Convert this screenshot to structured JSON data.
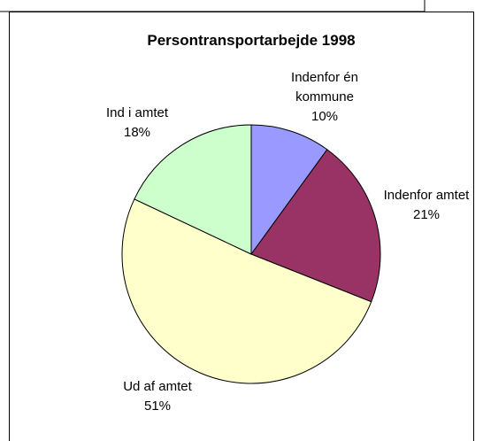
{
  "chart_data": {
    "type": "pie",
    "title": "Persontransportarbejde 1998",
    "categories": [
      "Indenfor én kommune",
      "Indenfor amtet",
      "Ud af amtet",
      "Ind i amtet"
    ],
    "values": [
      10,
      21,
      51,
      18
    ],
    "value_labels": [
      "10%",
      "21%",
      "51%",
      "18%"
    ],
    "colors": [
      "#9999ff",
      "#993366",
      "#ffffcc",
      "#ccffcc"
    ]
  }
}
